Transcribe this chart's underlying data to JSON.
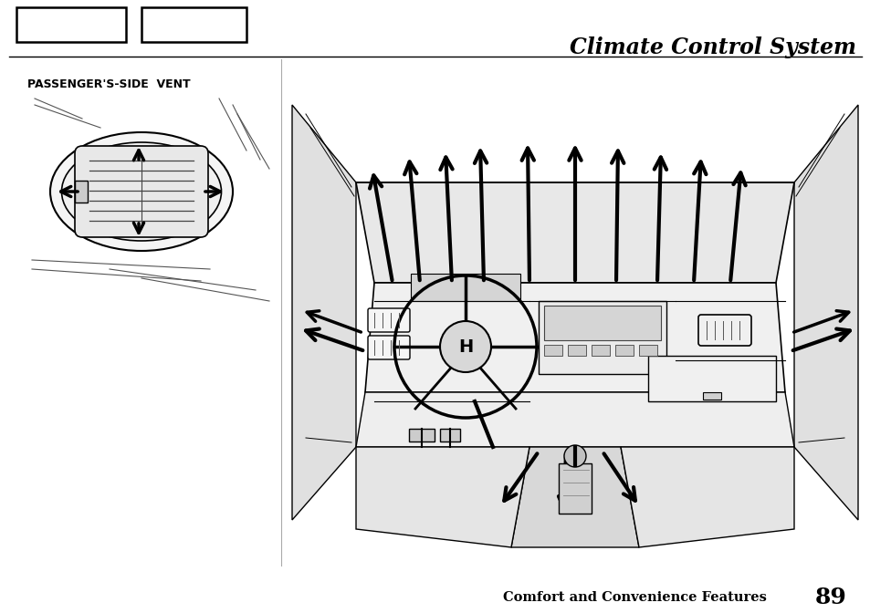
{
  "title": "Climate Control System",
  "footer_text": "Comfort and Convenience Features",
  "page_number": "89",
  "bg_color": "#ffffff",
  "text_color": "#000000",
  "title_fontsize": 17,
  "footer_fontsize": 10.5,
  "label_fontsize": 8,
  "page_label": "PASSENGER'S-SIDE  VENT"
}
